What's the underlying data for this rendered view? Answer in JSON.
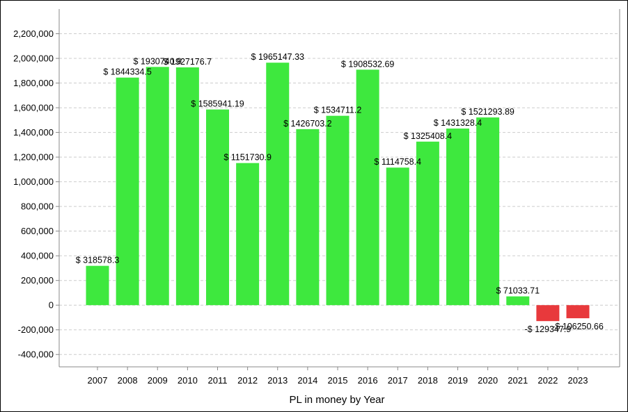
{
  "chart_data": {
    "type": "bar",
    "title": "",
    "xlabel": "PL in money by Year",
    "ylabel": "",
    "ylim": [
      -500000,
      2400000
    ],
    "yticks": [
      -400000,
      -200000,
      0,
      200000,
      400000,
      600000,
      800000,
      1000000,
      1200000,
      1400000,
      1600000,
      1800000,
      2000000,
      2200000
    ],
    "ytick_labels": [
      "-400,000",
      "-200,000",
      "0",
      "200,000",
      "400,000",
      "600,000",
      "800,000",
      "1,000,000",
      "1,200,000",
      "1,400,000",
      "1,600,000",
      "1,800,000",
      "2,000,000",
      "2,200,000"
    ],
    "grid": true,
    "legend": "none",
    "categories": [
      "2007",
      "2008",
      "2009",
      "2010",
      "2011",
      "2012",
      "2013",
      "2014",
      "2015",
      "2016",
      "2017",
      "2018",
      "2019",
      "2020",
      "2021",
      "2022",
      "2023"
    ],
    "values": [
      318578.3,
      1844334.5,
      1930740.9,
      1927176.7,
      1585941.19,
      1151730.9,
      1965147.33,
      1426703.2,
      1534711.2,
      1908532.69,
      1114758.4,
      1325408.4,
      1431328.4,
      1521293.89,
      71033.71,
      -129347.9,
      -106250.66
    ],
    "data_labels": [
      "$ 318578.3",
      "$ 1844334.5",
      "$ 1930740.9",
      "$ 1927176.7",
      "$ 1585941.19",
      "$ 1151730.9",
      "$ 1965147.33",
      "$ 1426703.2",
      "$ 1534711.2",
      "$ 1908532.69",
      "$ 1114758.4",
      "$ 1325408.4",
      "$ 1431328.4",
      "$ 1521293.89",
      "$ 71033.71",
      "-$ 129347.9",
      "-$ 106250.66"
    ],
    "colors": {
      "positive": "#3ee83e",
      "negative": "#e8393c",
      "grid": "#cccccc",
      "axis": "#888888"
    }
  }
}
